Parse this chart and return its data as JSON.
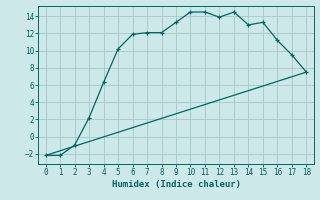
{
  "xlabel": "Humidex (Indice chaleur)",
  "bg_color": "#cce8e8",
  "grid_color": "#aacccc",
  "line_color": "#006666",
  "xlim": [
    -0.5,
    18.5
  ],
  "ylim": [
    -3.2,
    15.2
  ],
  "xticks": [
    0,
    1,
    2,
    3,
    4,
    5,
    6,
    7,
    8,
    9,
    10,
    11,
    12,
    13,
    14,
    15,
    16,
    17,
    18
  ],
  "yticks": [
    -2,
    0,
    2,
    4,
    6,
    8,
    10,
    12,
    14
  ],
  "curve_x": [
    0,
    1,
    2,
    3,
    4,
    5,
    6,
    7,
    8,
    9,
    10,
    11,
    12,
    13,
    14,
    15,
    16,
    17,
    18
  ],
  "curve_y": [
    -2.2,
    -2.2,
    -1.0,
    2.2,
    6.3,
    10.2,
    11.9,
    12.1,
    12.1,
    13.3,
    14.5,
    14.5,
    13.9,
    14.5,
    13.0,
    13.3,
    11.2,
    9.5,
    7.5
  ],
  "line_x": [
    0,
    18
  ],
  "line_y": [
    -2.2,
    7.5
  ]
}
